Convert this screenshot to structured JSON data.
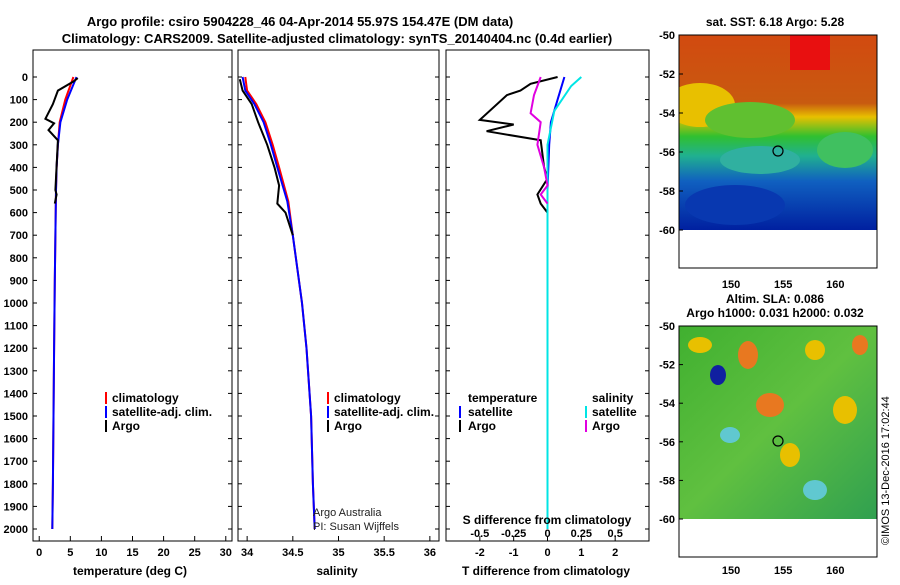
{
  "header": {
    "line1": "Argo profile: csiro 5904228_46 04-Apr-2014 55.97S 154.47E (DM data)",
    "line2": "Climatology: CARS2009. Satellite-adjusted climatology: synTS_20140404.nc (0.4d earlier)"
  },
  "colors": {
    "climatology": "#ff0000",
    "satellite_clim": "#0000ff",
    "argo": "#000000",
    "t_satellite": "#0000ff",
    "t_argo": "#000000",
    "s_satellite": "#00e5e5",
    "s_argo": "#e000e0"
  },
  "depth_ticks": [
    0,
    100,
    200,
    300,
    400,
    500,
    600,
    700,
    800,
    900,
    1000,
    1100,
    1200,
    1300,
    1400,
    1500,
    1600,
    1700,
    1800,
    1900,
    2000
  ],
  "legend_profiles": {
    "climatology": "climatology",
    "satellite": "satellite-adj. clim.",
    "argo": "Argo"
  },
  "legend_diff": {
    "t_header": "temperature",
    "s_header": "salinity",
    "satellite": "satellite",
    "argo": "Argo"
  },
  "credit": {
    "line1": "Argo Australia",
    "line2": "PI: Susan Wijffels"
  },
  "watermark": "©IMOS 13-Dec-2016 17:02:44",
  "chart_data": [
    {
      "type": "line",
      "xlabel": "temperature (deg C)",
      "ylabel": "",
      "xlim": [
        -1,
        31
      ],
      "ylim": [
        2050,
        0
      ],
      "xticks": [
        0,
        5,
        10,
        15,
        20,
        25,
        30
      ],
      "series": [
        {
          "name": "climatology",
          "x": [
            5.5,
            4.2,
            3.3,
            3.0,
            2.8,
            2.7,
            2.6,
            2.5,
            2.4,
            2.3,
            2.2,
            2.1
          ],
          "y": [
            0,
            100,
            200,
            300,
            400,
            500,
            700,
            900,
            1200,
            1500,
            1800,
            2000
          ]
        },
        {
          "name": "satellite-adj. clim.",
          "x": [
            6.0,
            4.5,
            3.4,
            3.0,
            2.8,
            2.7,
            2.6,
            2.5,
            2.4,
            2.3,
            2.2,
            2.1
          ],
          "y": [
            0,
            100,
            200,
            300,
            400,
            500,
            700,
            900,
            1200,
            1500,
            1800,
            2000
          ]
        },
        {
          "name": "Argo",
          "x": [
            6.2,
            5.5,
            3.0,
            2.2,
            1.0,
            2.4,
            1.5,
            3.0,
            2.6,
            2.8,
            2.5
          ],
          "y": [
            5,
            20,
            60,
            120,
            185,
            205,
            235,
            280,
            500,
            520,
            560
          ]
        }
      ]
    },
    {
      "type": "line",
      "xlabel": "salinity",
      "ylabel": "",
      "xlim": [
        33.9,
        36.1
      ],
      "ylim": [
        2050,
        0
      ],
      "xticks": [
        34,
        34.5,
        35,
        35.5,
        36
      ],
      "series": [
        {
          "name": "climatology",
          "x": [
            33.98,
            34.0,
            34.1,
            34.2,
            34.28,
            34.35,
            34.45,
            34.5,
            34.55,
            34.6,
            34.65,
            34.7,
            34.72,
            34.74
          ],
          "y": [
            0,
            60,
            120,
            200,
            300,
            400,
            550,
            700,
            850,
            1000,
            1200,
            1500,
            1800,
            2000
          ]
        },
        {
          "name": "satellite-adj. clim.",
          "x": [
            33.95,
            33.98,
            34.08,
            34.18,
            34.26,
            34.33,
            34.44,
            34.5,
            34.55,
            34.6,
            34.65,
            34.7,
            34.72,
            34.74
          ],
          "y": [
            0,
            60,
            120,
            200,
            300,
            400,
            550,
            700,
            850,
            1000,
            1200,
            1500,
            1800,
            2000
          ]
        },
        {
          "name": "Argo",
          "x": [
            33.92,
            33.95,
            34.05,
            34.12,
            34.22,
            34.3,
            34.35,
            34.33,
            34.42,
            34.5
          ],
          "y": [
            10,
            60,
            120,
            200,
            300,
            400,
            480,
            560,
            600,
            700
          ]
        }
      ]
    },
    {
      "type": "line",
      "xlabel": "T difference from climatology",
      "title_inner": "S difference from climatology",
      "ylabel": "",
      "xlim": [
        -3,
        3
      ],
      "ylim": [
        2050,
        0
      ],
      "xticks": [
        -2,
        -1,
        0,
        1,
        2
      ],
      "top_xticks": [
        -0.5,
        -0.25,
        0,
        0.25,
        0.5
      ],
      "series": [
        {
          "name": "temperature satellite",
          "x": [
            0.5,
            0.3,
            0.1,
            0.05,
            0.0,
            0.0,
            0.0,
            0.0
          ],
          "y": [
            0,
            100,
            200,
            300,
            500,
            800,
            1500,
            2000
          ]
        },
        {
          "name": "temperature Argo",
          "x": [
            0.3,
            -0.5,
            -0.8,
            -1.2,
            -2.0,
            -1.0,
            -1.8,
            -0.2,
            -0.1,
            0.0,
            -0.3,
            -0.2,
            0.0
          ],
          "y": [
            0,
            30,
            60,
            80,
            190,
            210,
            240,
            280,
            400,
            450,
            520,
            560,
            600
          ]
        },
        {
          "name": "salinity satellite",
          "x": [
            1.0,
            0.7,
            0.2,
            0.0,
            0.0,
            0.0,
            0.0
          ],
          "y": [
            0,
            40,
            150,
            300,
            600,
            1200,
            2000
          ]
        },
        {
          "name": "salinity Argo",
          "x": [
            -0.2,
            -0.4,
            -0.5,
            -0.2,
            -0.3,
            -0.1,
            0.0,
            -0.2,
            0.0
          ],
          "y": [
            0,
            80,
            160,
            200,
            300,
            400,
            480,
            520,
            560
          ]
        }
      ]
    }
  ],
  "maps": {
    "sst": {
      "title": "sat. SST: 6.18 Argo: 5.28",
      "yticks": [
        -50,
        -52,
        -54,
        -56,
        -58,
        -60
      ],
      "xticks": [
        150,
        155,
        160
      ],
      "argo_lon": 154.47,
      "argo_lat": -55.97
    },
    "sla": {
      "title1": "Altim. SLA: 0.086",
      "title2": "Argo h1000: 0.031 h2000: 0.032",
      "yticks": [
        -50,
        -52,
        -54,
        -56,
        -58,
        -60
      ],
      "xticks": [
        150,
        155,
        160
      ],
      "argo_lon": 154.47,
      "argo_lat": -55.97
    }
  }
}
